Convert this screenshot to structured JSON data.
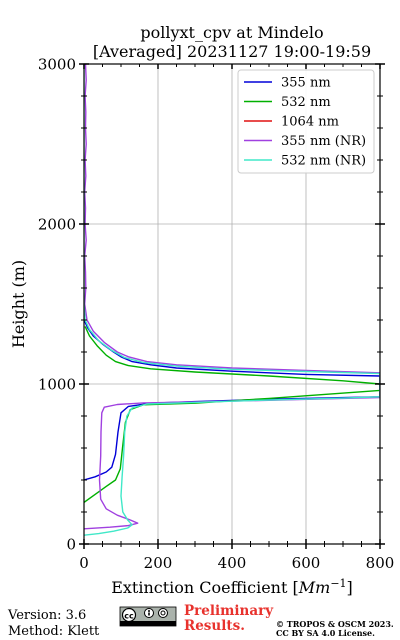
{
  "footer": {
    "version": "Version: 3.6",
    "method": "Method: Klett",
    "preliminary_line1": "Preliminary",
    "preliminary_line2": "Results.",
    "copyright_line1": "© TROPOS & OSCM 2023.",
    "copyright_line2": "CC BY SA 4.0 License.",
    "license_badge": "cc-by-sa-badge"
  },
  "chart_data": {
    "type": "line",
    "title_line1": "pollyxt_cpv at Mindelo",
    "title_line2": "[Averaged] 20231127 19:00-19:59",
    "xlabel": "Extinction Coefficient [",
    "xlabel_unit_base": "Mm",
    "xlabel_unit_exp": "−1",
    "xlabel_close": "]",
    "ylabel": "Height (m)",
    "xlim": [
      0,
      800
    ],
    "ylim": [
      0,
      3000
    ],
    "x_ticks": [
      0,
      200,
      400,
      600,
      800
    ],
    "x_tick_labels": [
      "0",
      "200",
      "400",
      "600",
      "800"
    ],
    "y_ticks": [
      0,
      1000,
      2000,
      3000
    ],
    "y_tick_labels": [
      "0",
      "1000",
      "2000",
      "3000"
    ],
    "grid": true,
    "legend_position": "top-right",
    "series": [
      {
        "name": "355 nm",
        "color": "#0000d8",
        "points": [
          [
            0,
            400
          ],
          [
            30,
            420
          ],
          [
            60,
            450
          ],
          [
            75,
            480
          ],
          [
            85,
            560
          ],
          [
            92,
            700
          ],
          [
            100,
            820
          ],
          [
            120,
            860
          ],
          [
            180,
            880
          ],
          [
            300,
            890
          ],
          [
            500,
            905
          ],
          [
            700,
            915
          ],
          [
            800,
            920
          ],
          [
            800,
            1050
          ],
          [
            600,
            1060
          ],
          [
            400,
            1080
          ],
          [
            250,
            1100
          ],
          [
            180,
            1120
          ],
          [
            130,
            1140
          ],
          [
            100,
            1170
          ],
          [
            80,
            1200
          ],
          [
            50,
            1250
          ],
          [
            25,
            1300
          ],
          [
            10,
            1350
          ],
          [
            0,
            1400
          ]
        ]
      },
      {
        "name": "532 nm",
        "color": "#00b000",
        "points": [
          [
            0,
            260
          ],
          [
            30,
            310
          ],
          [
            60,
            360
          ],
          [
            85,
            400
          ],
          [
            98,
            470
          ],
          [
            104,
            600
          ],
          [
            112,
            760
          ],
          [
            125,
            840
          ],
          [
            160,
            870
          ],
          [
            300,
            880
          ],
          [
            500,
            910
          ],
          [
            650,
            935
          ],
          [
            800,
            960
          ],
          [
            800,
            1000
          ],
          [
            700,
            1020
          ],
          [
            500,
            1050
          ],
          [
            300,
            1075
          ],
          [
            180,
            1095
          ],
          [
            120,
            1115
          ],
          [
            85,
            1140
          ],
          [
            60,
            1180
          ],
          [
            35,
            1240
          ],
          [
            15,
            1300
          ],
          [
            3,
            1360
          ]
        ]
      },
      {
        "name": "1064 nm",
        "color": "#e01010",
        "points": []
      },
      {
        "name": "355 nm (NR)",
        "color": "#a040e0",
        "points": [
          [
            0,
            95
          ],
          [
            70,
            105
          ],
          [
            120,
            115
          ],
          [
            145,
            130
          ],
          [
            125,
            150
          ],
          [
            90,
            180
          ],
          [
            60,
            220
          ],
          [
            45,
            280
          ],
          [
            42,
            400
          ],
          [
            45,
            550
          ],
          [
            46,
            700
          ],
          [
            48,
            820
          ],
          [
            55,
            855
          ],
          [
            90,
            872
          ],
          [
            160,
            882
          ],
          [
            300,
            888
          ],
          [
            500,
            898
          ],
          [
            700,
            910
          ],
          [
            800,
            915
          ],
          [
            800,
            1070
          ],
          [
            600,
            1085
          ],
          [
            400,
            1100
          ],
          [
            250,
            1120
          ],
          [
            170,
            1140
          ],
          [
            120,
            1170
          ],
          [
            90,
            1200
          ],
          [
            55,
            1260
          ],
          [
            25,
            1330
          ],
          [
            8,
            1400
          ],
          [
            2,
            1500
          ],
          [
            5,
            1600
          ],
          [
            4,
            1700
          ],
          [
            2,
            1800
          ],
          [
            6,
            1900
          ],
          [
            3,
            2000
          ],
          [
            4,
            2100
          ],
          [
            2,
            2200
          ],
          [
            5,
            2300
          ],
          [
            3,
            2400
          ],
          [
            6,
            2500
          ],
          [
            4,
            2600
          ],
          [
            5,
            2700
          ],
          [
            3,
            2800
          ],
          [
            6,
            2900
          ],
          [
            4,
            3000
          ]
        ]
      },
      {
        "name": "532 nm (NR)",
        "color": "#40e8c8",
        "points": [
          [
            0,
            55
          ],
          [
            40,
            65
          ],
          [
            80,
            80
          ],
          [
            118,
            100
          ],
          [
            130,
            120
          ],
          [
            118,
            150
          ],
          [
            105,
            200
          ],
          [
            100,
            300
          ],
          [
            103,
            420
          ],
          [
            107,
            550
          ],
          [
            110,
            700
          ],
          [
            116,
            800
          ],
          [
            130,
            850
          ],
          [
            170,
            875
          ],
          [
            300,
            885
          ],
          [
            500,
            900
          ],
          [
            700,
            912
          ],
          [
            800,
            920
          ],
          [
            800,
            1065
          ],
          [
            600,
            1078
          ],
          [
            400,
            1092
          ],
          [
            250,
            1112
          ],
          [
            160,
            1135
          ],
          [
            110,
            1165
          ],
          [
            75,
            1210
          ],
          [
            40,
            1270
          ],
          [
            15,
            1340
          ],
          [
            3,
            1400
          ],
          [
            0,
            1500
          ],
          [
            0,
            1700
          ],
          [
            0,
            2000
          ],
          [
            0,
            2500
          ],
          [
            0,
            3000
          ]
        ]
      }
    ]
  }
}
